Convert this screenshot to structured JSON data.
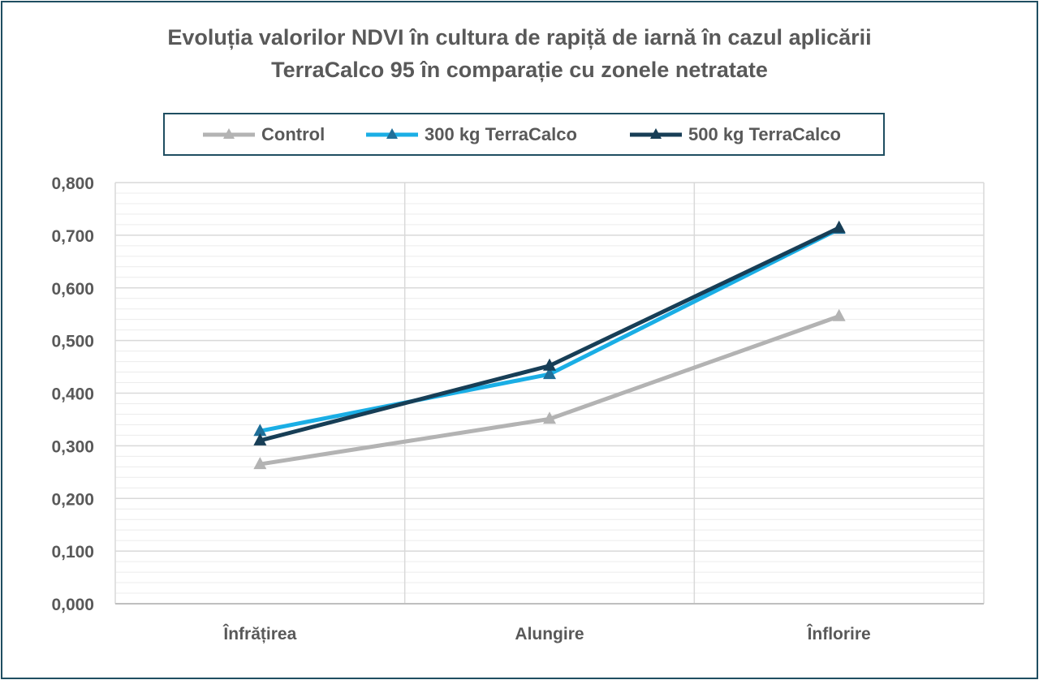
{
  "chart_data": {
    "type": "line",
    "title_lines": [
      "Evoluția valorilor NDVI în cultura de rapiță de iarnă în cazul aplicării",
      "TerraCalco 95 în comparație cu zonele netratate"
    ],
    "categories": [
      "Înfrățirea",
      "Alungire",
      "Înflorire"
    ],
    "series": [
      {
        "name": "Control",
        "values": [
          0.265,
          0.351,
          0.546
        ],
        "color": "#b3b3b3"
      },
      {
        "name": "300 kg TerraCalco",
        "values": [
          0.328,
          0.436,
          0.712
        ],
        "color": "#1aaee5"
      },
      {
        "name": "500 kg TerraCalco",
        "values": [
          0.31,
          0.452,
          0.714
        ],
        "color": "#173e56"
      }
    ],
    "ylim": [
      0,
      0.8
    ],
    "y_major_step": 0.1,
    "y_minor_step": 0.02,
    "y_tick_labels": [
      "0,000",
      "0,100",
      "0,200",
      "0,300",
      "0,400",
      "0,500",
      "0,600",
      "0,700",
      "0,800"
    ],
    "legend_position": "top",
    "grid": true,
    "marker": "triangle"
  }
}
